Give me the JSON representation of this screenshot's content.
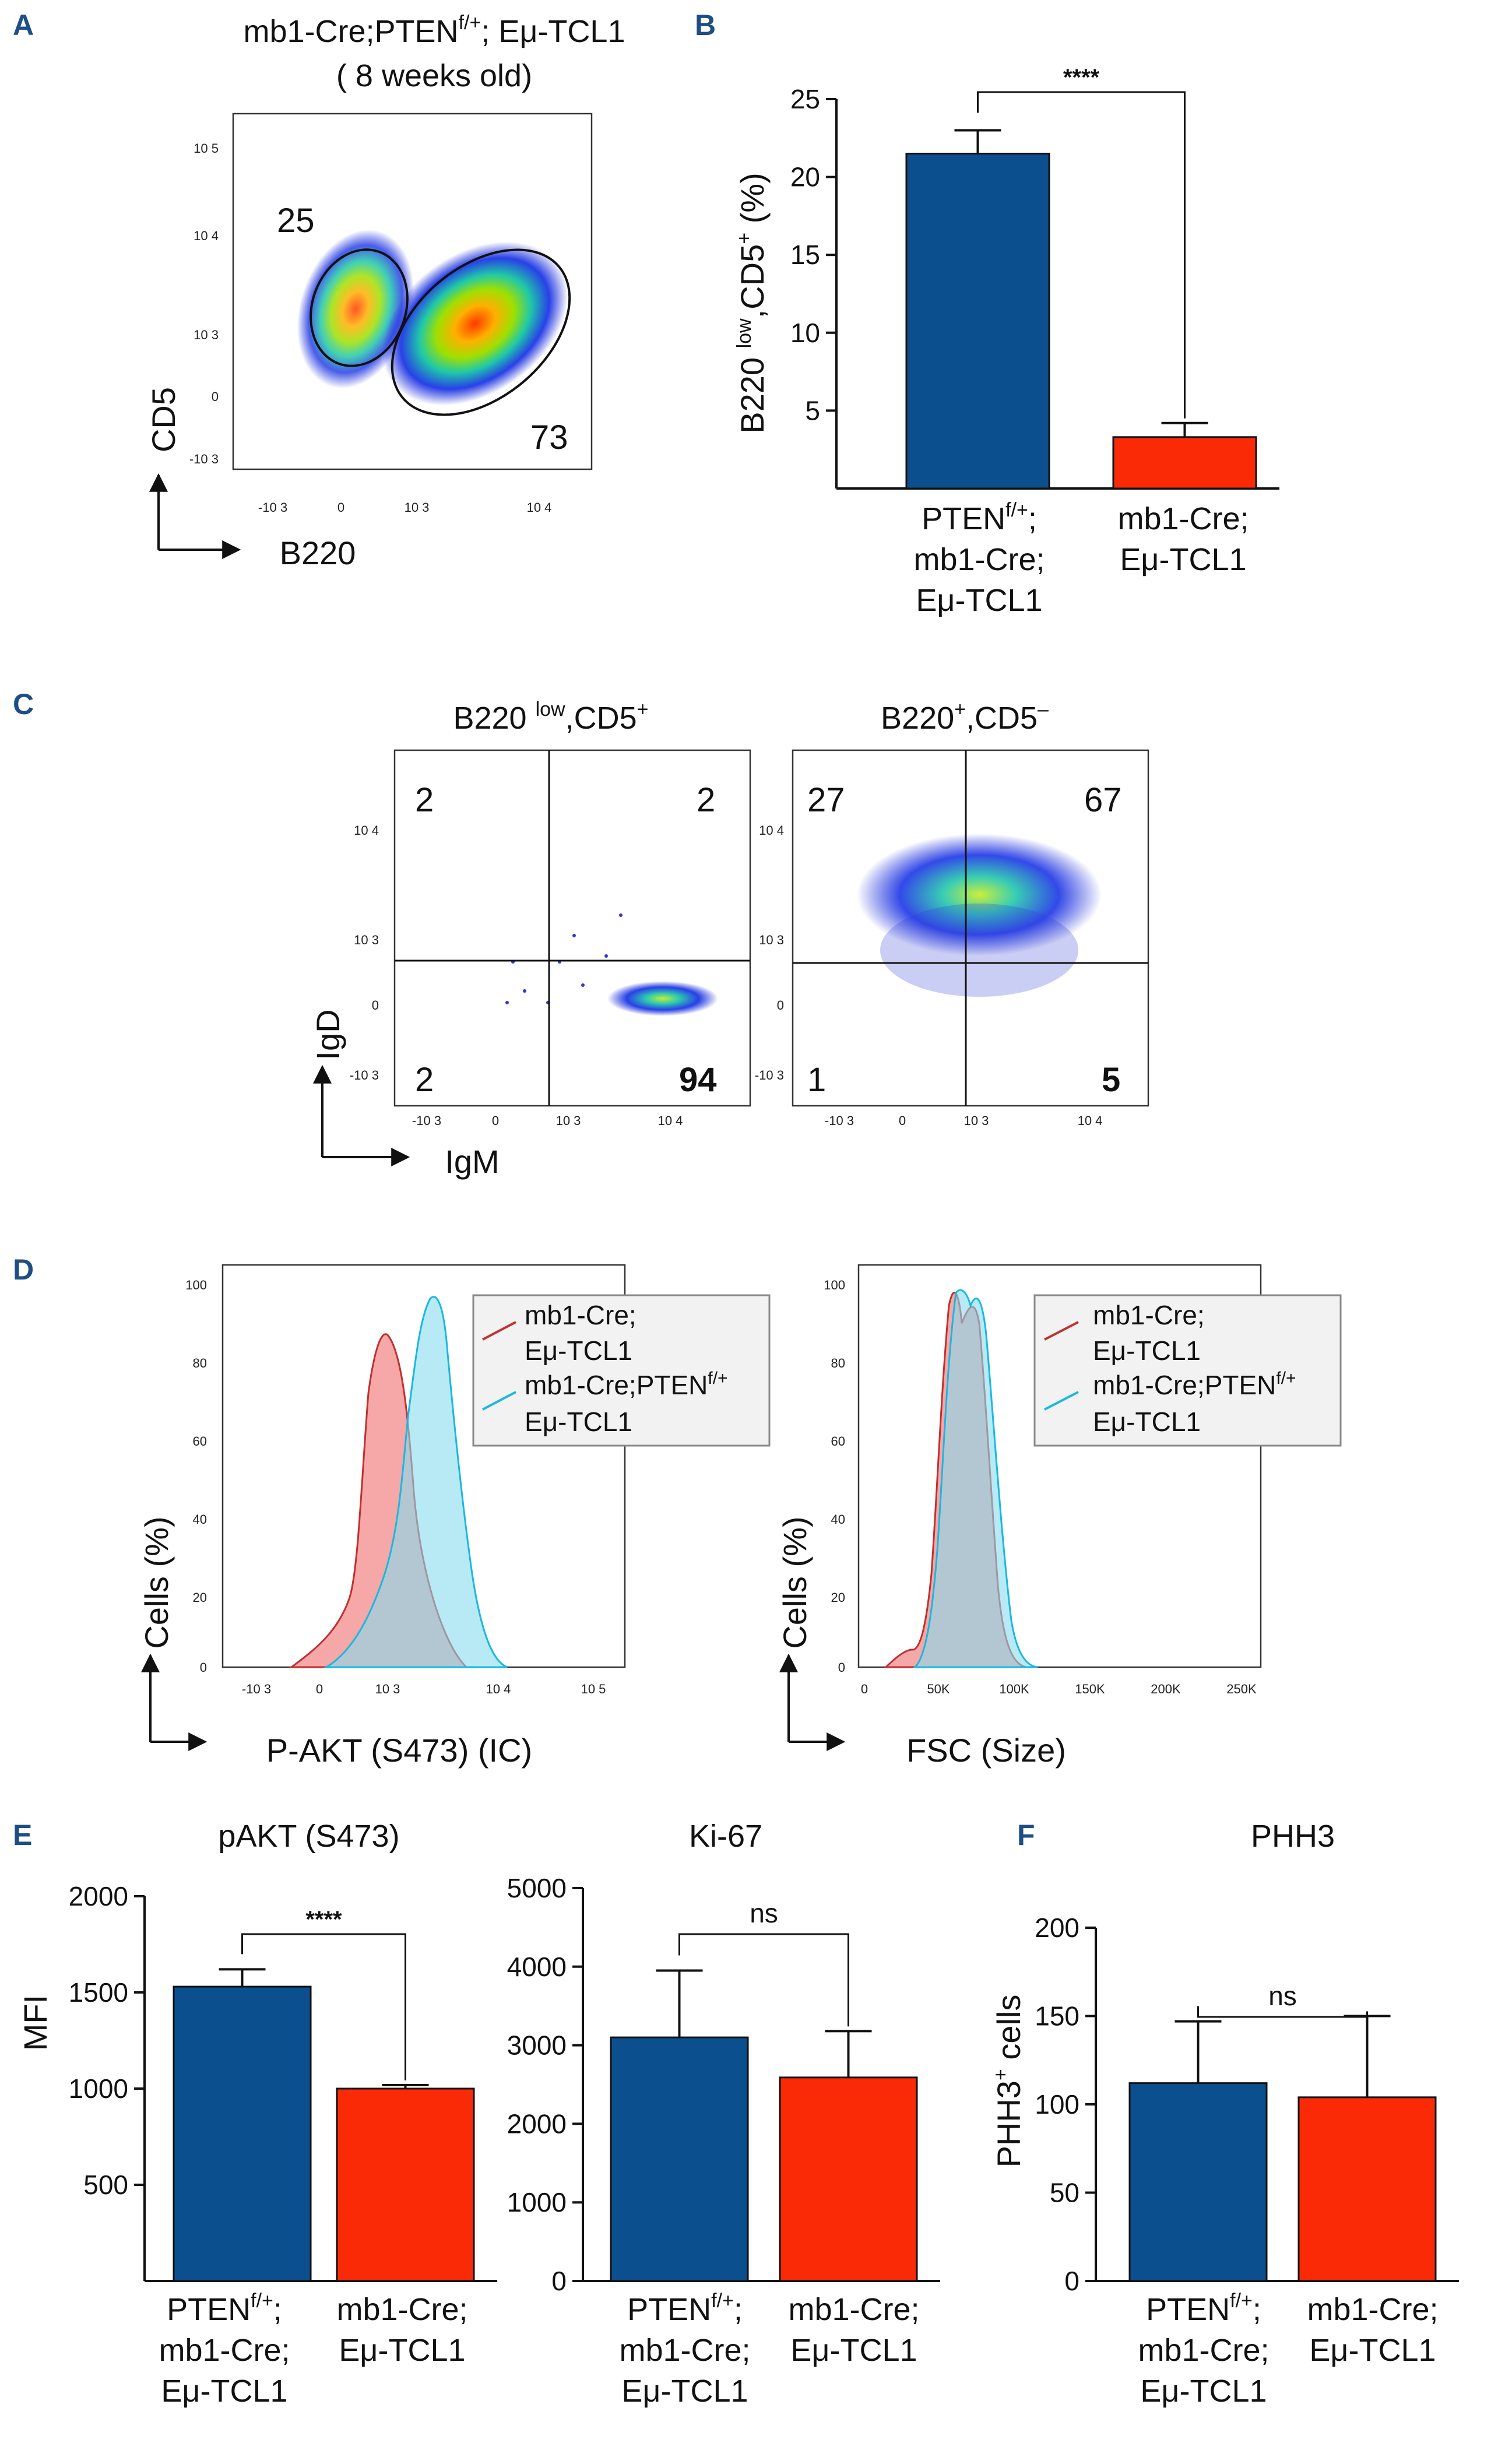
{
  "colors": {
    "blue": "#0b4f8f",
    "red": "#fa2a06",
    "red_fill": "#f38a8a",
    "red_line": "#c0302f",
    "cyan_fill": "#87dcee",
    "cyan_line": "#1ab8e0",
    "overlap": "#9aa9c0",
    "letter": "#1f4e84"
  },
  "panels": {
    "A": {
      "letter": "A",
      "title_line1_pre": "mb1-Cre;PTEN",
      "title_line1_sup": "f/+",
      "title_line1_post": "; Eμ-TCL1",
      "title_line2": "( 8 weeks old)",
      "ylabel": "CD5",
      "xlabel": "B220",
      "gate_left_pct": "25",
      "gate_right_pct": "73",
      "yticks": [
        "10 5",
        "10 4",
        "10 3",
        "0",
        "-10 3"
      ],
      "xticks": [
        "-10 3",
        "0",
        "10 3",
        "10 4"
      ]
    },
    "B": {
      "letter": "B",
      "ylabel_pre": "B220 ",
      "ylabel_sup1": "low",
      "ylabel_mid": ",CD5",
      "ylabel_sup2": "+",
      "ylabel_post": " (%)",
      "significance": "****",
      "categories": [
        {
          "lines": [
            "PTEN",
            "mb1-Cre;",
            "Eμ-TCL1"
          ],
          "sup": "f/+",
          "sup_suffix": ";"
        },
        {
          "lines": [
            "mb1-Cre;",
            "Eμ-TCL1"
          ]
        }
      ]
    },
    "C": {
      "letter": "C",
      "left": {
        "title_pre": "B220 ",
        "title_sup1": "low",
        "title_mid": ",CD5",
        "title_sup2": "+",
        "q_ul": "2",
        "q_ur": "2",
        "q_ll": "2",
        "q_lr": "94"
      },
      "right": {
        "title_pre": "B220",
        "title_sup1": "+",
        "title_mid": ",CD5",
        "title_sup2": "–",
        "q_ul": "27",
        "q_ur": "67",
        "q_ll": "1",
        "q_lr": "5"
      },
      "ylabel": "IgD",
      "xlabel": "IgM",
      "yticks": [
        "10 4",
        "10 3",
        "0",
        "-10 3"
      ],
      "xticks": [
        "-10 3",
        "0",
        "10 3",
        "10 4"
      ]
    },
    "D": {
      "letter": "D",
      "ylabel": "Cells (%)",
      "left_xlabel": "P-AKT (S473) (IC)",
      "right_xlabel": "FSC (Size)",
      "yticks": [
        "100",
        "80",
        "60",
        "40",
        "20",
        "0"
      ],
      "left_xticks": [
        "-10 3",
        "0",
        "10 3",
        "10 4",
        "10 5"
      ],
      "right_xticks": [
        "0",
        "50K",
        "100K",
        "150K",
        "200K",
        "250K"
      ],
      "legend": {
        "a1": "mb1-Cre;",
        "a2": "Eμ-TCL1",
        "b1": "mb1-Cre;PTEN",
        "b1_sup": "f/+",
        "b2": "Eμ-TCL1"
      }
    },
    "E": {
      "letter": "E",
      "left_title": "pAKT (S473)",
      "left_ylabel": "MFI",
      "left_sig": "****",
      "right_title": "Ki-67",
      "right_sig": "ns"
    },
    "F": {
      "letter": "F",
      "title": "PHH3",
      "ylabel_pre": "PHH3",
      "ylabel_sup": "+",
      "ylabel_post": " cells",
      "sig": "ns"
    }
  },
  "common_categories": {
    "c1_l1": "PTEN",
    "c1_sup": "f/+",
    "c1_l1_suffix": ";",
    "c1_l2": "mb1-Cre;",
    "c1_l3": "Eμ-TCL1",
    "c2_l1": "mb1-Cre;",
    "c2_l2": "Eμ-TCL1"
  },
  "chart_data": [
    {
      "id": "B",
      "type": "bar",
      "title": "",
      "ylabel": "B220 low,CD5+ (%)",
      "categories": [
        "PTENf/+; mb1-Cre; Eμ-TCL1",
        "mb1-Cre; Eμ-TCL1"
      ],
      "values": [
        21.5,
        3.3
      ],
      "errors": [
        1.5,
        0.9
      ],
      "ylim": [
        0,
        25
      ],
      "yticks": [
        5,
        10,
        15,
        20,
        25
      ],
      "significance": "****"
    },
    {
      "id": "E-left",
      "type": "bar",
      "title": "pAKT (S473)",
      "ylabel": "MFI",
      "categories": [
        "PTENf/+; mb1-Cre; Eμ-TCL1",
        "mb1-Cre; Eμ-TCL1"
      ],
      "values": [
        1530,
        1000
      ],
      "errors": [
        90,
        18
      ],
      "ylim": [
        0,
        2000
      ],
      "yticks": [
        500,
        1000,
        1500,
        2000
      ],
      "significance": "****"
    },
    {
      "id": "E-right",
      "type": "bar",
      "title": "Ki-67",
      "ylabel": "",
      "categories": [
        "PTENf/+; mb1-Cre; Eμ-TCL1",
        "mb1-Cre; Eμ-TCL1"
      ],
      "values": [
        3100,
        2590
      ],
      "errors": [
        850,
        590
      ],
      "ylim": [
        0,
        5000
      ],
      "yticks": [
        0,
        1000,
        2000,
        3000,
        4000,
        5000
      ],
      "significance": "ns"
    },
    {
      "id": "F",
      "type": "bar",
      "title": "PHH3",
      "ylabel": "PHH3+ cells",
      "categories": [
        "PTENf/+; mb1-Cre; Eμ-TCL1",
        "mb1-Cre; Eμ-TCL1"
      ],
      "values": [
        112,
        104
      ],
      "errors": [
        35,
        46
      ],
      "ylim": [
        0,
        200
      ],
      "yticks": [
        0,
        50,
        100,
        150,
        200
      ],
      "significance": "ns"
    }
  ]
}
